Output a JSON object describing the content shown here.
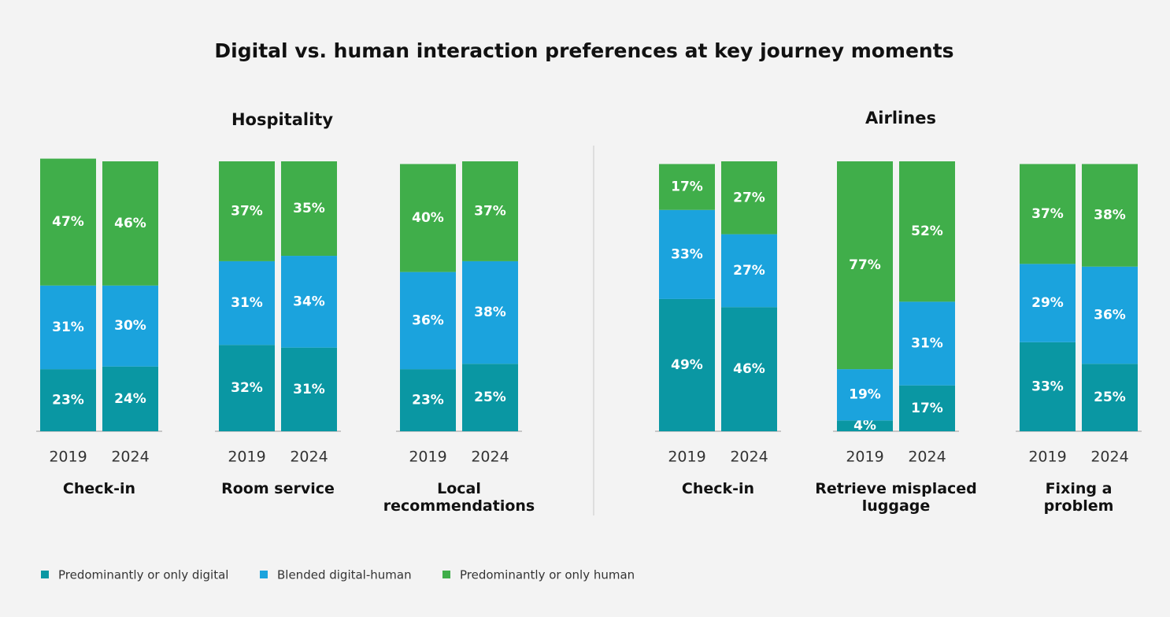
{
  "title": "Digital vs. human interaction preferences at key journey moments",
  "chart_data": [
    {
      "type": "stacked-bar",
      "group": "Hospitality",
      "title": "Check-in",
      "categories": [
        "2019",
        "2024"
      ],
      "series": [
        {
          "name": "Predominantly or only digital",
          "color": "#0a97a3",
          "values": [
            23,
            24
          ],
          "value_labels": [
            "23%",
            "24%"
          ]
        },
        {
          "name": "Blended digital-human",
          "color": "#1ba3dd",
          "values": [
            31,
            30
          ],
          "value_labels": [
            "31%",
            "30%"
          ]
        },
        {
          "name": "Predominantly or only human",
          "color": "#40ae4a",
          "values": [
            47,
            46
          ],
          "value_labels": [
            "47%",
            "46%"
          ]
        }
      ]
    },
    {
      "type": "stacked-bar",
      "group": "Hospitality",
      "title": "Room service",
      "categories": [
        "2019",
        "2024"
      ],
      "series": [
        {
          "name": "Predominantly or only digital",
          "color": "#0a97a3",
          "values": [
            32,
            31
          ],
          "value_labels": [
            "32%",
            "31%"
          ]
        },
        {
          "name": "Blended digital-human",
          "color": "#1ba3dd",
          "values": [
            31,
            34
          ],
          "value_labels": [
            "31%",
            "34%"
          ]
        },
        {
          "name": "Predominantly or only human",
          "color": "#40ae4a",
          "values": [
            37,
            35
          ],
          "value_labels": [
            "37%",
            "35%"
          ]
        }
      ]
    },
    {
      "type": "stacked-bar",
      "group": "Hospitality",
      "title": "Local recommendations",
      "categories": [
        "2019",
        "2024"
      ],
      "series": [
        {
          "name": "Predominantly or only digital",
          "color": "#0a97a3",
          "values": [
            23,
            25
          ],
          "value_labels": [
            "23%",
            "25%"
          ]
        },
        {
          "name": "Blended digital-human",
          "color": "#1ba3dd",
          "values": [
            36,
            38
          ],
          "value_labels": [
            "36%",
            "38%"
          ]
        },
        {
          "name": "Predominantly or only human",
          "color": "#40ae4a",
          "values": [
            40,
            37
          ],
          "value_labels": [
            "40%",
            "37%"
          ]
        }
      ]
    },
    {
      "type": "stacked-bar",
      "group": "Airlines",
      "title": "Check-in",
      "categories": [
        "2019",
        "2024"
      ],
      "series": [
        {
          "name": "Predominantly or only digital",
          "color": "#0a97a3",
          "values": [
            49,
            46
          ],
          "value_labels": [
            "49%",
            "46%"
          ]
        },
        {
          "name": "Blended digital-human",
          "color": "#1ba3dd",
          "values": [
            33,
            27
          ],
          "value_labels": [
            "33%",
            "27%"
          ]
        },
        {
          "name": "Predominantly or only human",
          "color": "#40ae4a",
          "values": [
            17,
            27
          ],
          "value_labels": [
            "17%",
            "27%"
          ]
        }
      ]
    },
    {
      "type": "stacked-bar",
      "group": "Airlines",
      "title": "Retrieve misplaced luggage",
      "categories": [
        "2019",
        "2024"
      ],
      "series": [
        {
          "name": "Predominantly or only digital",
          "color": "#0a97a3",
          "values": [
            4,
            17
          ],
          "value_labels": [
            "4%",
            "17%"
          ]
        },
        {
          "name": "Blended digital-human",
          "color": "#1ba3dd",
          "values": [
            19,
            31
          ],
          "value_labels": [
            "19%",
            "31%"
          ]
        },
        {
          "name": "Predominantly or only human",
          "color": "#40ae4a",
          "values": [
            77,
            52
          ],
          "value_labels": [
            "77%",
            "52%"
          ]
        }
      ]
    },
    {
      "type": "stacked-bar",
      "group": "Airlines",
      "title": "Fixing a problem",
      "categories": [
        "2019",
        "2024"
      ],
      "series": [
        {
          "name": "Predominantly or only digital",
          "color": "#0a97a3",
          "values": [
            33,
            25
          ],
          "value_labels": [
            "33%",
            "25%"
          ]
        },
        {
          "name": "Blended digital-human",
          "color": "#1ba3dd",
          "values": [
            29,
            36
          ],
          "value_labels": [
            "29%",
            "36%"
          ]
        },
        {
          "name": "Predominantly or only human",
          "color": "#40ae4a",
          "values": [
            37,
            38
          ],
          "value_labels": [
            "37%",
            "38%"
          ]
        }
      ]
    }
  ]
}
